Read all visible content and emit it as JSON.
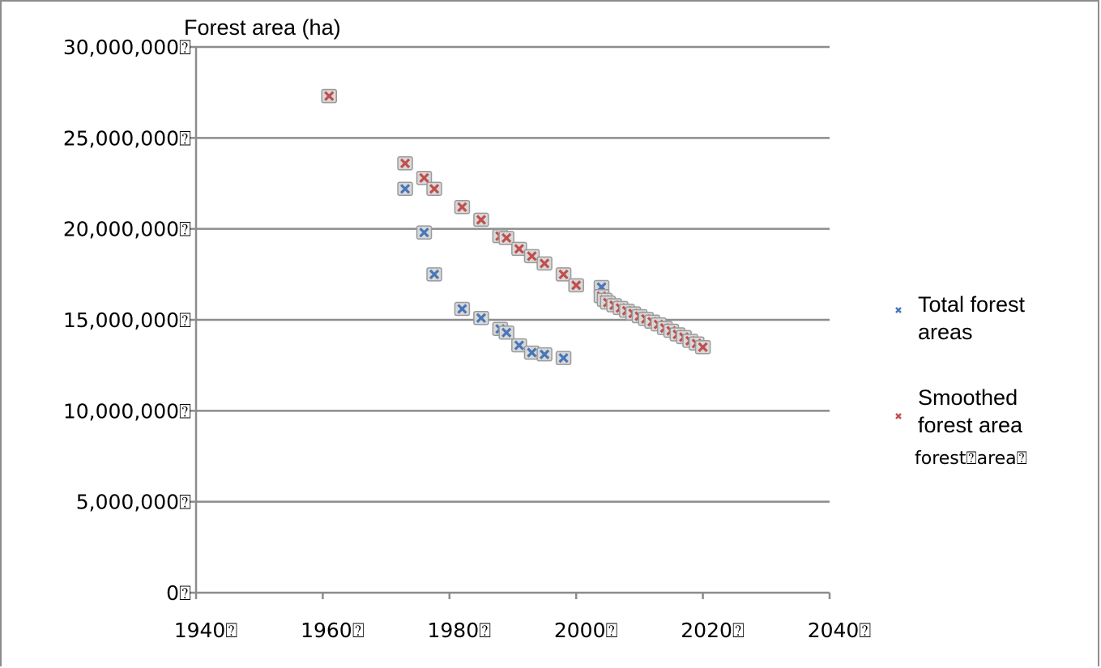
{
  "chart_data": {
    "type": "scatter",
    "title": "",
    "ylabel": "Forest area (ha)",
    "xlabel": "",
    "xlim": [
      1940,
      2040
    ],
    "ylim": [
      0,
      30000000
    ],
    "x_ticks": [
      1940,
      1960,
      1980,
      2000,
      2020,
      2040
    ],
    "y_ticks": [
      0,
      5000000,
      10000000,
      15000000,
      20000000,
      25000000,
      30000000
    ],
    "x_tick_labels": [
      "1940",
      "1960",
      "1980",
      "2000",
      "2020",
      "2040"
    ],
    "y_tick_labels": [
      "0",
      "5,000,000",
      "10,000,000",
      "15,000,000",
      "20,000,000",
      "25,000,000",
      "30,000,000"
    ],
    "tick_suffix": "⍰",
    "grid": "horizontal",
    "legend_position": "right",
    "legend_overflow_text": "forest⍰area⍰",
    "series": [
      {
        "name": "Total forest areas",
        "color": "#4a76b8",
        "marker": "x",
        "points": [
          [
            1961,
            27300000
          ],
          [
            1973,
            22200000
          ],
          [
            1976,
            19800000
          ],
          [
            1977.6,
            17500000
          ],
          [
            1982,
            15600000
          ],
          [
            1985,
            15100000
          ],
          [
            1988,
            14500000
          ],
          [
            1989,
            14300000
          ],
          [
            1991,
            13600000
          ],
          [
            1993,
            13200000
          ],
          [
            1995,
            13100000
          ],
          [
            1998,
            12900000
          ],
          [
            2004,
            16800000
          ]
        ]
      },
      {
        "name": "Smoothed forest area",
        "color": "#c0504d",
        "marker": "x",
        "points": [
          [
            1961,
            27300000
          ],
          [
            1973,
            23600000
          ],
          [
            1976,
            22800000
          ],
          [
            1977.6,
            22200000
          ],
          [
            1982,
            21200000
          ],
          [
            1985,
            20500000
          ],
          [
            1988,
            19600000
          ],
          [
            1989,
            19500000
          ],
          [
            1991,
            18900000
          ],
          [
            1993,
            18500000
          ],
          [
            1995,
            18100000
          ],
          [
            1998,
            17500000
          ],
          [
            2000,
            16900000
          ],
          [
            2004,
            16300000
          ],
          [
            2004.5,
            16100000
          ],
          [
            2005,
            15950000
          ],
          [
            2006,
            15800000
          ],
          [
            2007,
            15650000
          ],
          [
            2008,
            15500000
          ],
          [
            2009,
            15350000
          ],
          [
            2010,
            15200000
          ],
          [
            2011,
            15050000
          ],
          [
            2012,
            14900000
          ],
          [
            2013,
            14750000
          ],
          [
            2014,
            14550000
          ],
          [
            2015,
            14400000
          ],
          [
            2016,
            14200000
          ],
          [
            2017,
            14050000
          ],
          [
            2018,
            13850000
          ],
          [
            2019,
            13700000
          ],
          [
            2020,
            13500000
          ]
        ]
      }
    ]
  },
  "colors": {
    "grid": "#8c8c8c",
    "marker_shadow": "#9a9a9a"
  }
}
